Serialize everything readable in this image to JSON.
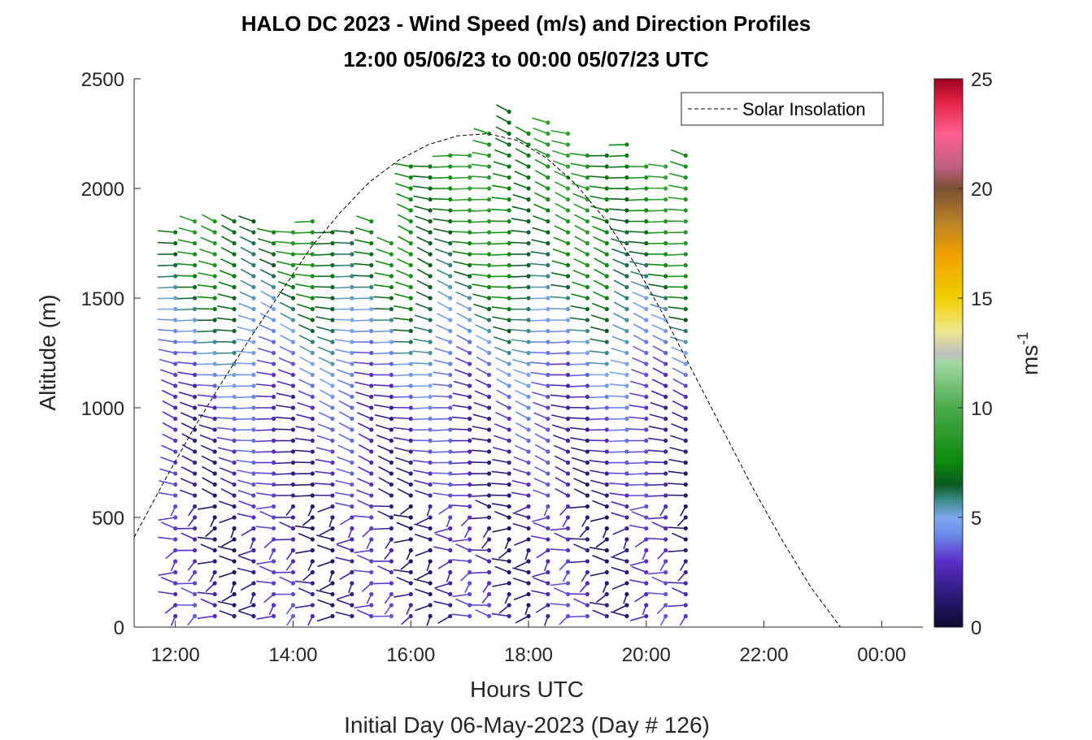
{
  "chart_data": {
    "type": "scatter",
    "title": "HALO DC 2023 - Wind Speed (m/s) and Direction Profiles",
    "subtitle": "12:00 05/06/23 to 00:00 05/07/23  UTC",
    "xlabel": "Hours UTC",
    "ylabel": "Altitude (m)",
    "footer": "Initial Day 06-May-2023 (Day # 126)",
    "xlim_hours": [
      11.3,
      24.7
    ],
    "ylim": [
      0,
      2500
    ],
    "x_ticks": [
      {
        "hour": 12,
        "label": "12:00"
      },
      {
        "hour": 14,
        "label": "14:00"
      },
      {
        "hour": 16,
        "label": "16:00"
      },
      {
        "hour": 18,
        "label": "18:00"
      },
      {
        "hour": 20,
        "label": "20:00"
      },
      {
        "hour": 22,
        "label": "22:00"
      },
      {
        "hour": 24,
        "label": "00:00"
      }
    ],
    "y_ticks": [
      0,
      500,
      1000,
      1500,
      2000,
      2500
    ],
    "legend": {
      "entries": [
        "Solar Insolation"
      ],
      "placement": "top-right"
    },
    "colorbar": {
      "label": "ms",
      "label_superscript": "-1",
      "range": [
        0,
        25
      ],
      "ticks": [
        0,
        5,
        10,
        15,
        20,
        25
      ],
      "stops": [
        {
          "v": 0,
          "c": "#0a0a2e"
        },
        {
          "v": 1.5,
          "c": "#2e1a7a"
        },
        {
          "v": 3,
          "c": "#5a2ec8"
        },
        {
          "v": 4.2,
          "c": "#6a8ae8"
        },
        {
          "v": 5,
          "c": "#7fa8f0"
        },
        {
          "v": 5.8,
          "c": "#3a8a88"
        },
        {
          "v": 6.5,
          "c": "#0a5a20"
        },
        {
          "v": 7.5,
          "c": "#0a8a0a"
        },
        {
          "v": 10,
          "c": "#4aaa4a"
        },
        {
          "v": 12,
          "c": "#a0d8a0"
        },
        {
          "v": 12.5,
          "c": "#c0c0c0"
        },
        {
          "v": 13.5,
          "c": "#f0e890"
        },
        {
          "v": 15,
          "c": "#f0d000"
        },
        {
          "v": 17,
          "c": "#f0a000"
        },
        {
          "v": 18.5,
          "c": "#b8802a"
        },
        {
          "v": 20,
          "c": "#7a5030"
        },
        {
          "v": 21,
          "c": "#c06080"
        },
        {
          "v": 22.5,
          "c": "#ff6090"
        },
        {
          "v": 24,
          "c": "#e02040"
        },
        {
          "v": 25,
          "c": "#a00020"
        }
      ]
    },
    "solar_insolation": {
      "line_style": "dashed",
      "x_hours": [
        11.3,
        11.8,
        12.3,
        12.8,
        13.3,
        13.8,
        14.3,
        14.8,
        15.3,
        15.8,
        16.3,
        16.8,
        17.3,
        17.8,
        18.3,
        18.8,
        19.3,
        19.8,
        20.3,
        20.8,
        21.3,
        21.8,
        22.3,
        22.8,
        23.3,
        23.8,
        24.3,
        24.7
      ],
      "y_values": [
        410,
        660,
        900,
        1120,
        1330,
        1530,
        1730,
        1890,
        2030,
        2130,
        2200,
        2240,
        2250,
        2220,
        2140,
        2020,
        1860,
        1660,
        1420,
        1160,
        900,
        640,
        400,
        180,
        0,
        0,
        0,
        0
      ]
    },
    "profiles": {
      "description_of_series": "wind barbs by time and altitude, colored by speed",
      "times_hours": [
        12.0,
        12.33,
        12.67,
        13.0,
        13.33,
        13.67,
        14.0,
        14.33,
        14.67,
        15.0,
        15.33,
        15.67,
        16.0,
        16.33,
        16.67,
        17.0,
        17.33,
        17.67,
        18.0,
        18.33,
        18.67,
        19.0,
        19.33,
        19.67,
        20.0,
        20.33,
        20.67
      ],
      "top_altitude_m": [
        1830,
        1870,
        1860,
        1850,
        1870,
        1820,
        1840,
        1850,
        1810,
        1800,
        1860,
        1790,
        2100,
        2110,
        2170,
        2190,
        2250,
        2350,
        2270,
        2310,
        2260,
        2180,
        2170,
        2220,
        2130,
        2140,
        2180
      ],
      "altitude_step_m": 50,
      "speed_by_altitude_m": [
        {
          "alt": 0,
          "speed": 2.5
        },
        {
          "alt": 400,
          "speed": 2.0
        },
        {
          "alt": 1000,
          "speed": 3.0
        },
        {
          "alt": 1300,
          "speed": 5.0
        },
        {
          "alt": 1600,
          "speed": 7.0
        },
        {
          "alt": 2000,
          "speed": 8.0
        }
      ]
    }
  }
}
